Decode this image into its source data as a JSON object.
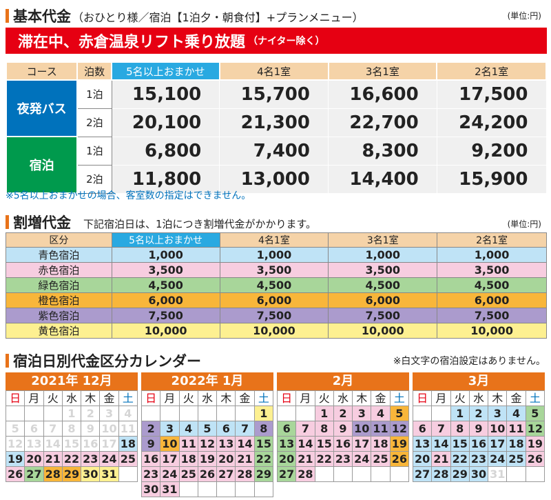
{
  "section1": {
    "title": "基本代金",
    "subtitle": "（おひとり様／宿泊【1泊夕・朝食付】+プランメニュー）",
    "unit": "(単位:円)",
    "banner_main": "滞在中、赤倉温泉リフト乗り放題",
    "banner_sub": "（ナイター除く）",
    "headers": [
      "コース",
      "泊数",
      "5名以上おまかせ",
      "4名1室",
      "3名1室",
      "2名1室"
    ],
    "groups": [
      {
        "name": "夜発バス",
        "rows": [
          {
            "nights": "1泊",
            "prices": [
              "15,100",
              "15,700",
              "16,600",
              "17,500"
            ]
          },
          {
            "nights": "2泊",
            "prices": [
              "20,100",
              "21,300",
              "22,700",
              "24,200"
            ]
          }
        ]
      },
      {
        "name": "宿泊",
        "rows": [
          {
            "nights": "1泊",
            "prices": [
              "6,800",
              "7,400",
              "8,300",
              "9,200"
            ]
          },
          {
            "nights": "2泊",
            "prices": [
              "11,800",
              "13,000",
              "14,400",
              "15,900"
            ]
          }
        ]
      }
    ],
    "note": "※5名以上おまかせの場合、客室数の指定はできません。"
  },
  "section2": {
    "title": "割増代金",
    "subtitle": "下記宿泊日は、1泊につき割増代金がかかります。",
    "unit": "(単位:円)",
    "headers": [
      "区分",
      "5名以上おまかせ",
      "4名1室",
      "3名1室",
      "2名1室"
    ],
    "rows": [
      {
        "label": "青色宿泊",
        "color": "#bfe3f6",
        "values": [
          "1,000",
          "1,000",
          "1,000",
          "1,000"
        ]
      },
      {
        "label": "赤色宿泊",
        "color": "#f7cde0",
        "values": [
          "3,500",
          "3,500",
          "3,500",
          "3,500"
        ]
      },
      {
        "label": "緑色宿泊",
        "color": "#a8d69a",
        "values": [
          "4,500",
          "4,500",
          "4,500",
          "4,500"
        ]
      },
      {
        "label": "橙色宿泊",
        "color": "#f8b63a",
        "values": [
          "6,000",
          "6,000",
          "6,000",
          "6,000"
        ]
      },
      {
        "label": "紫色宿泊",
        "color": "#ab9bcd",
        "values": [
          "7,500",
          "7,500",
          "7,500",
          "7,500"
        ]
      },
      {
        "label": "黄色宿泊",
        "color": "#fdf091",
        "values": [
          "10,000",
          "10,000",
          "10,000",
          "10,000"
        ]
      }
    ]
  },
  "section3": {
    "title": "宿泊日別代金区分カレンダー",
    "note": "※白文字の宿泊設定はありません。",
    "dow": [
      "日",
      "月",
      "火",
      "水",
      "木",
      "金",
      "土"
    ],
    "colors": {
      "b": "#bfe3f6",
      "r": "#f7cde0",
      "g": "#a8d69a",
      "o": "#f8b63a",
      "p": "#ab9bcd",
      "y": "#fdf091"
    },
    "months": [
      {
        "title": "2021年 12月",
        "start": 3,
        "days": 31,
        "cls": {
          "18": "b",
          "19": "b",
          "20": "r",
          "21": "r",
          "22": "r",
          "23": "r",
          "24": "r",
          "25": "r",
          "26": "r",
          "27": "g",
          "28": "o",
          "29": "o",
          "30": "y",
          "31": "y"
        },
        "white": [
          1,
          2,
          3,
          4,
          5,
          6,
          7,
          8,
          9,
          10,
          11,
          12,
          13,
          14,
          15,
          16,
          17
        ]
      },
      {
        "title": "2022年 1月",
        "start": 6,
        "days": 31,
        "cls": {
          "1": "y",
          "2": "p",
          "3": "b",
          "4": "b",
          "5": "b",
          "6": "b",
          "7": "b",
          "8": "p",
          "9": "p",
          "10": "o",
          "11": "r",
          "12": "r",
          "13": "r",
          "14": "r",
          "15": "g",
          "16": "r",
          "17": "r",
          "18": "r",
          "19": "r",
          "20": "r",
          "21": "r",
          "22": "g",
          "23": "r",
          "24": "r",
          "25": "r",
          "26": "r",
          "27": "r",
          "28": "r",
          "29": "g",
          "30": "r",
          "31": "r"
        },
        "white": []
      },
      {
        "title": "2月",
        "start": 2,
        "days": 28,
        "cls": {
          "1": "r",
          "2": "r",
          "3": "r",
          "4": "r",
          "5": "o",
          "6": "g",
          "7": "r",
          "8": "r",
          "9": "r",
          "10": "p",
          "11": "p",
          "12": "p",
          "13": "g",
          "14": "r",
          "15": "r",
          "16": "r",
          "17": "r",
          "18": "r",
          "19": "o",
          "20": "g",
          "21": "r",
          "22": "r",
          "23": "r",
          "24": "r",
          "25": "r",
          "26": "o",
          "27": "g",
          "28": "r"
        },
        "white": []
      },
      {
        "title": "3月",
        "start": 2,
        "days": 31,
        "cls": {
          "1": "b",
          "2": "b",
          "3": "b",
          "4": "b",
          "5": "g",
          "6": "r",
          "7": "r",
          "8": "r",
          "9": "r",
          "10": "r",
          "11": "r",
          "12": "g",
          "13": "b",
          "14": "b",
          "15": "b",
          "16": "b",
          "17": "b",
          "18": "b",
          "19": "r",
          "20": "b",
          "21": "r",
          "22": "b",
          "23": "b",
          "24": "b",
          "25": "b",
          "26": "r",
          "27": "b",
          "28": "b",
          "29": "b",
          "30": "b"
        },
        "white": [
          31
        ]
      }
    ]
  }
}
